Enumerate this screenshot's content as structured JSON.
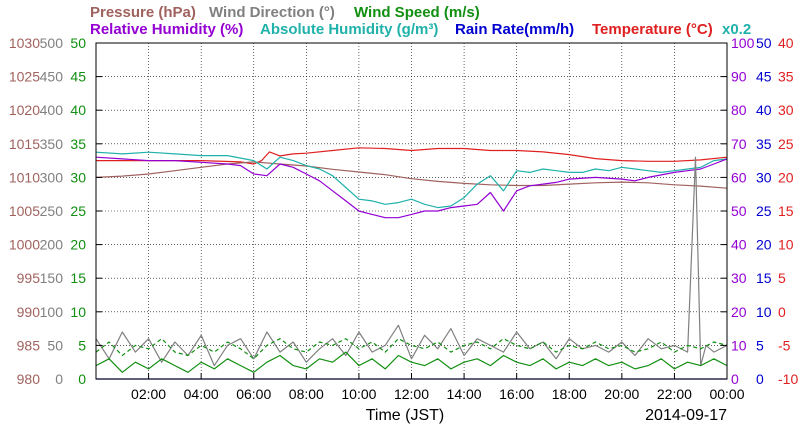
{
  "chart_data": {
    "type": "line",
    "date_label": "2014-09-17",
    "xlabel": "Time (JST)",
    "x_ticks": [
      "02:00",
      "04:00",
      "06:00",
      "08:00",
      "10:00",
      "12:00",
      "14:00",
      "16:00",
      "18:00",
      "20:00",
      "22:00",
      "00:00"
    ],
    "x_range_hours": [
      0,
      24
    ],
    "grid": true,
    "legend": [
      {
        "text": "Pressure (hPa)",
        "color": "#a0625e"
      },
      {
        "text": "Wind Direction (°)",
        "color": "#808080"
      },
      {
        "text": "Wind Speed (m/s)",
        "color": "#118f11"
      },
      {
        "text": "Relative Humidity (%)",
        "color": "#9400d3"
      },
      {
        "text": "Absolute Humidity (g/m³)",
        "color": "#20b2aa"
      },
      {
        "text": "Rain Rate(mm/h)",
        "color": "#0000d0"
      },
      {
        "text": "Temperature (°C)",
        "color": "#e02020"
      },
      {
        "text": "x0.2",
        "color": "#20b2aa"
      }
    ],
    "axes": {
      "pressure": {
        "color": "#a0625e",
        "range": [
          980,
          1030
        ],
        "ticks": [
          "1030",
          "1025",
          "1020",
          "1015",
          "1010",
          "1005",
          "1000",
          "995",
          "990",
          "985",
          "980"
        ]
      },
      "wind_dir": {
        "color": "#808080",
        "range": [
          0,
          500
        ],
        "ticks": [
          "500",
          "450",
          "400",
          "350",
          "300",
          "250",
          "200",
          "150",
          "100",
          "50",
          "0"
        ]
      },
      "wind_speed": {
        "color": "#118f11",
        "range": [
          0,
          50
        ],
        "ticks": [
          "50",
          "45",
          "40",
          "35",
          "30",
          "25",
          "20",
          "15",
          "10",
          "5",
          "0"
        ]
      },
      "humidity": {
        "color": "#9400d3",
        "range": [
          0,
          100
        ],
        "ticks": [
          "100",
          "90",
          "80",
          "70",
          "60",
          "50",
          "40",
          "30",
          "20",
          "10",
          "0"
        ]
      },
      "rain": {
        "color": "#0000d0",
        "range": [
          0,
          50
        ],
        "ticks": [
          "50",
          "45",
          "40",
          "35",
          "30",
          "25",
          "20",
          "15",
          "10",
          "5",
          "0"
        ]
      },
      "temperature": {
        "color": "#e02020",
        "range": [
          -10,
          40
        ],
        "ticks": [
          "40",
          "35",
          "30",
          "25",
          "20",
          "15",
          "10",
          "5",
          "0",
          "-5",
          "-10"
        ]
      }
    },
    "series": [
      {
        "name": "Temperature (°C)",
        "axis": "temperature",
        "color": "#e02020",
        "x": [
          0,
          2,
          4,
          5.5,
          6,
          6.3,
          6.6,
          7,
          7.5,
          8,
          9,
          10,
          11,
          12,
          13,
          14,
          15,
          16,
          17,
          18,
          19,
          20,
          21,
          22,
          23,
          24
        ],
        "y": [
          22.5,
          22.5,
          22.5,
          22.3,
          22.0,
          22.5,
          23.8,
          23.2,
          23.5,
          23.6,
          24.0,
          24.4,
          24.3,
          24.0,
          24.3,
          24.3,
          24.0,
          24.0,
          23.8,
          23.4,
          22.8,
          22.5,
          22.4,
          22.4,
          22.6,
          23.0
        ]
      },
      {
        "name": "Pressure (hPa)",
        "axis": "pressure",
        "color": "#a0625e",
        "x": [
          0,
          1,
          2,
          3,
          4,
          5,
          6,
          7,
          8,
          9,
          10,
          11,
          12,
          13,
          14,
          15,
          16,
          17,
          18,
          19,
          20,
          21,
          22,
          23,
          24
        ],
        "y": [
          1010.0,
          1010.2,
          1010.5,
          1011.0,
          1011.5,
          1012.0,
          1012.3,
          1012.0,
          1011.7,
          1011.2,
          1010.8,
          1010.4,
          1009.8,
          1009.4,
          1009.1,
          1008.9,
          1008.8,
          1008.8,
          1009.0,
          1009.2,
          1009.3,
          1009.2,
          1008.9,
          1008.7,
          1008.4
        ]
      },
      {
        "name": "Absolute Humidity (g/m³)",
        "axis": "humidity",
        "color": "#20b2aa",
        "x": [
          0,
          1,
          2,
          3,
          4,
          5,
          6,
          6.5,
          7,
          7.5,
          8,
          8.5,
          9,
          9.5,
          10,
          10.5,
          11,
          11.5,
          12,
          12.5,
          13,
          13.5,
          14,
          14.5,
          15,
          15.5,
          16,
          16.5,
          17,
          17.5,
          18,
          18.5,
          19,
          19.5,
          20,
          20.5,
          21,
          21.5,
          22,
          22.5,
          23,
          23.5,
          24
        ],
        "y": [
          67.5,
          67.0,
          67.5,
          67.0,
          66.5,
          66.5,
          65.0,
          62.5,
          66.0,
          65.0,
          63.5,
          62.5,
          60.5,
          57.0,
          53.5,
          53.0,
          52.0,
          52.5,
          53.5,
          52.0,
          51.0,
          51.5,
          54.0,
          58.0,
          60.5,
          56.0,
          62.0,
          61.5,
          62.5,
          62.0,
          61.5,
          61.5,
          62.5,
          62.0,
          63.0,
          62.5,
          62.0,
          61.5,
          62.0,
          62.5,
          63.0,
          65.0,
          65.5
        ]
      },
      {
        "name": "Relative Humidity (%)",
        "axis": "humidity",
        "color": "#9400d3",
        "x": [
          0,
          1,
          2,
          3,
          4,
          5,
          5.5,
          6,
          6.5,
          7,
          7.5,
          8,
          8.5,
          9,
          9.5,
          10,
          10.5,
          11,
          11.5,
          12,
          12.5,
          13,
          13.5,
          14,
          14.5,
          15,
          15.5,
          16,
          16.5,
          17,
          17.5,
          18,
          19,
          20,
          20.5,
          21,
          22,
          22.5,
          23,
          23.5,
          24
        ],
        "y": [
          66.0,
          65.5,
          65.0,
          65.0,
          64.5,
          64.0,
          63.5,
          61.0,
          60.5,
          64.0,
          63.0,
          61.0,
          59.0,
          56.0,
          53.0,
          50.0,
          49.0,
          48.0,
          48.0,
          49.0,
          50.0,
          50.0,
          51.0,
          51.5,
          52.0,
          55.5,
          50.0,
          56.0,
          57.5,
          58.0,
          58.5,
          59.5,
          60.0,
          59.5,
          59.0,
          60.0,
          61.5,
          62.0,
          62.5,
          64.0,
          65.5
        ]
      },
      {
        "name": "Wind Direction (°)",
        "axis": "wind_dir",
        "color": "#808080",
        "x": [
          0,
          0.5,
          1,
          1.5,
          2,
          2.5,
          3,
          3.5,
          4,
          4.5,
          5,
          5.5,
          6,
          6.5,
          7,
          7.5,
          8,
          8.5,
          9,
          9.5,
          10,
          10.5,
          11,
          11.5,
          12,
          12.5,
          13,
          13.5,
          14,
          14.5,
          15,
          15.5,
          16,
          16.5,
          17,
          17.5,
          18,
          18.5,
          19,
          19.5,
          20,
          20.5,
          21,
          21.5,
          22,
          22.5,
          22.8,
          23,
          23.2,
          23.5,
          24
        ],
        "y": [
          60,
          30,
          70,
          40,
          60,
          25,
          55,
          35,
          65,
          20,
          50,
          60,
          30,
          70,
          40,
          55,
          25,
          45,
          60,
          35,
          70,
          40,
          50,
          80,
          30,
          65,
          45,
          75,
          35,
          60,
          50,
          40,
          70,
          45,
          55,
          30,
          60,
          45,
          50,
          40,
          55,
          35,
          60,
          45,
          50,
          40,
          330,
          20,
          50,
          40,
          50
        ]
      },
      {
        "name": "Wind Speed (m/s)",
        "axis": "wind_speed",
        "color": "#118f11",
        "x": [
          0,
          0.5,
          1,
          1.5,
          2,
          2.5,
          3,
          3.5,
          4,
          4.5,
          5,
          5.5,
          6,
          6.5,
          7,
          7.5,
          8,
          8.5,
          9,
          9.5,
          10,
          10.5,
          11,
          11.5,
          12,
          12.5,
          13,
          13.5,
          14,
          14.5,
          15,
          15.5,
          16,
          16.5,
          17,
          17.5,
          18,
          18.5,
          19,
          19.5,
          20,
          20.5,
          21,
          21.5,
          22,
          22.5,
          23,
          23.5,
          24
        ],
        "y": [
          2,
          3,
          1,
          2.5,
          1.5,
          3,
          2,
          1,
          2.5,
          1.5,
          3,
          2,
          1,
          2.5,
          3.5,
          2,
          1.5,
          3,
          2.5,
          4,
          2,
          3,
          1.5,
          3.5,
          2.5,
          2,
          3,
          1.5,
          2.5,
          3,
          2,
          3.5,
          2.5,
          2,
          3,
          1.5,
          2.5,
          2,
          3,
          2,
          2.5,
          1.5,
          2,
          3,
          1.5,
          2.5,
          2,
          3,
          2
        ]
      },
      {
        "name": "Wind Speed gust",
        "axis": "wind_speed",
        "color": "#118f11",
        "dashed": true,
        "x": [
          0,
          0.5,
          1,
          1.5,
          2,
          2.5,
          3,
          3.5,
          4,
          4.5,
          5,
          5.5,
          6,
          6.5,
          7,
          7.5,
          8,
          8.5,
          9,
          9.5,
          10,
          10.5,
          11,
          11.5,
          12,
          12.5,
          13,
          13.5,
          14,
          14.5,
          15,
          15.5,
          16,
          16.5,
          17,
          17.5,
          18,
          18.5,
          19,
          19.5,
          20,
          20.5,
          21,
          21.5,
          22,
          22.5,
          23,
          23.5,
          24
        ],
        "y": [
          4,
          5.5,
          3.5,
          5,
          4.5,
          6,
          4,
          3.5,
          5,
          4,
          5.5,
          4.5,
          3,
          5,
          6,
          4.5,
          4,
          5.5,
          5,
          6,
          4.5,
          5.5,
          4,
          6,
          5,
          4.5,
          5.5,
          4,
          5,
          5.5,
          4.5,
          6,
          5,
          4.5,
          5.5,
          4,
          5,
          4.5,
          5.5,
          4.5,
          5,
          4,
          4.5,
          5.5,
          4,
          5,
          4.5,
          5.5,
          5
        ]
      },
      {
        "name": "Rain Rate(mm/h)",
        "axis": "rain",
        "color": "#0000d0",
        "x": [
          0,
          24
        ],
        "y": [
          0,
          0
        ]
      }
    ]
  }
}
